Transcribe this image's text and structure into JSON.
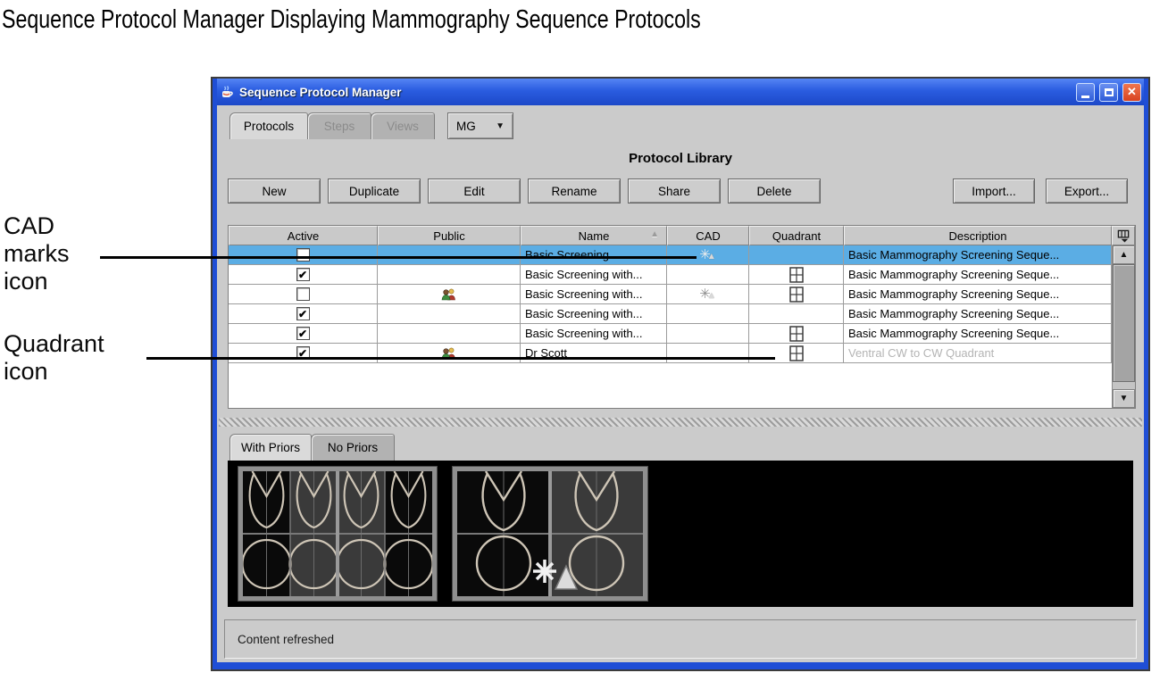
{
  "figure": {
    "title": "Sequence Protocol Manager Displaying Mammography Sequence Protocols",
    "callouts": [
      {
        "label": "CAD marks icon",
        "points_to": "cad-marks-icon in first table row"
      },
      {
        "label": "Quadrant icon",
        "points_to": "quadrant-icon in Dr Scott row"
      }
    ]
  },
  "window": {
    "title": "Sequence Protocol Manager",
    "titlebar_icons": [
      "java-cup-icon",
      "minimize-icon",
      "maximize-icon",
      "close-icon"
    ],
    "tabs": [
      {
        "label": "Protocols",
        "state": "active"
      },
      {
        "label": "Steps",
        "state": "disabled"
      },
      {
        "label": "Views",
        "state": "disabled"
      }
    ],
    "modality_dropdown": {
      "value": "MG",
      "icon": "chevron-down-icon"
    },
    "library_title": "Protocol Library",
    "action_buttons": [
      "New",
      "Duplicate",
      "Edit",
      "Rename",
      "Share",
      "Delete"
    ],
    "transfer_buttons": [
      "Import...",
      "Export..."
    ],
    "table": {
      "columns": [
        "Active",
        "Public",
        "Name",
        "CAD",
        "Quadrant",
        "Description"
      ],
      "sorted_by": {
        "column": "Name",
        "direction": "ascending",
        "icon": "sort-ascending-icon"
      },
      "corner_icon": "column-selector-icon",
      "rows": [
        {
          "active": false,
          "public": false,
          "name": "Basic Screening",
          "cad": true,
          "quadrant": false,
          "description": "Basic Mammography Screening Seque...",
          "selected": true,
          "muted_description": false
        },
        {
          "active": true,
          "public": false,
          "name": "Basic Screening with...",
          "cad": false,
          "quadrant": true,
          "description": "Basic Mammography Screening Seque...",
          "selected": false,
          "muted_description": false
        },
        {
          "active": false,
          "public": true,
          "name": "Basic Screening with...",
          "cad": true,
          "quadrant": true,
          "description": "Basic Mammography Screening Seque...",
          "selected": false,
          "muted_description": false
        },
        {
          "active": true,
          "public": false,
          "name": "Basic Screening with...",
          "cad": false,
          "quadrant": false,
          "description": "Basic Mammography Screening Seque...",
          "selected": false,
          "muted_description": false
        },
        {
          "active": true,
          "public": false,
          "name": "Basic Screening with...",
          "cad": false,
          "quadrant": true,
          "description": "Basic Mammography Screening Seque...",
          "selected": false,
          "muted_description": false
        },
        {
          "active": true,
          "public": true,
          "name": "Dr Scott",
          "cad": false,
          "quadrant": true,
          "description": "Ventral CW to CW Quadrant",
          "selected": false,
          "muted_description": true
        }
      ]
    },
    "preview_tabs": [
      {
        "label": "With Priors",
        "state": "active"
      },
      {
        "label": "No Priors",
        "state": "inactive"
      }
    ],
    "preview": {
      "panels": [
        "four-view-with-priors-thumbnail",
        "two-view-thumbnail-with-cad-overlay"
      ],
      "overlay_icon": "cad-marks-icon"
    },
    "status_bar": "Content refreshed",
    "colors": {
      "selected_row": "#5bade4",
      "titlebar_blue": "#2a5ce0",
      "close_red": "#d8431f",
      "panel_gray": "#cbcbcb",
      "muted_text": "#b4b4b4",
      "preview_shape_stroke": "#cec5b6"
    }
  }
}
